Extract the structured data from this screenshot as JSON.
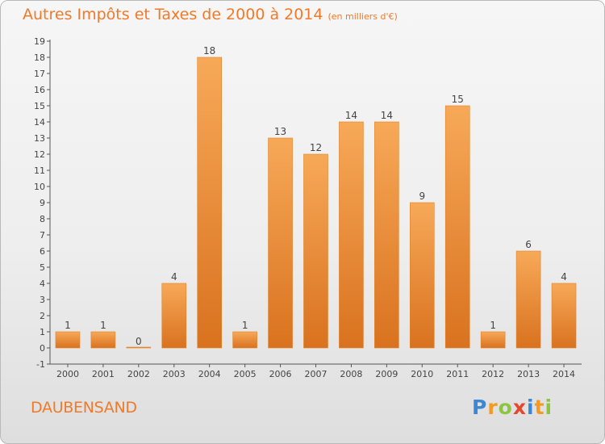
{
  "title": "Autres Impôts et Taxes de 2000 à 2014",
  "unit": "(en milliers d'€)",
  "commune": "DAUBENSAND",
  "brand": {
    "letters": [
      "P",
      "r",
      "o",
      "x",
      "i",
      "t",
      "i"
    ],
    "colors": [
      "#3a87d6",
      "#f39a1f",
      "#8cc63f",
      "#e8452c",
      "#3a87d6",
      "#f39a1f",
      "#8cc63f"
    ]
  },
  "colors": {
    "bar_light": "#f7a958",
    "bar_dark": "#d9721f",
    "text": "#f07a2a",
    "axis": "#555555"
  },
  "chart_data": {
    "type": "bar",
    "categories": [
      "2000",
      "2001",
      "2002",
      "2003",
      "2004",
      "2005",
      "2006",
      "2007",
      "2008",
      "2009",
      "2010",
      "2011",
      "2012",
      "2013",
      "2014"
    ],
    "values": [
      1,
      1,
      0,
      4,
      18,
      1,
      13,
      12,
      14,
      14,
      9,
      15,
      1,
      6,
      4
    ],
    "y_ticks": [
      -1,
      0,
      1,
      2,
      3,
      4,
      5,
      6,
      7,
      8,
      9,
      10,
      11,
      12,
      13,
      14,
      15,
      16,
      17,
      18,
      19
    ],
    "ylim": [
      -1,
      19
    ],
    "grid": false,
    "legend": "none"
  }
}
